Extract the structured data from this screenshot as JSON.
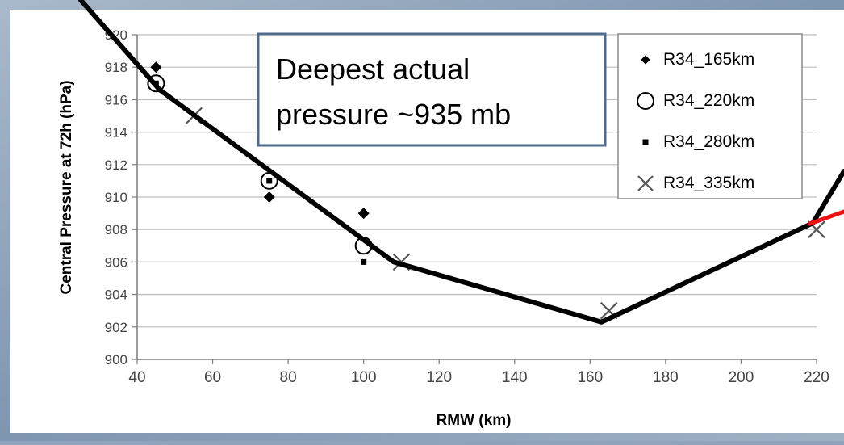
{
  "chart_data": {
    "type": "scatter",
    "title": "",
    "xlabel": "RMW (km)",
    "ylabel": "Central Pressure at 72h (hPa)",
    "xlim": [
      40,
      220
    ],
    "ylim": [
      900,
      920
    ],
    "x_ticks": [
      40,
      60,
      80,
      100,
      120,
      140,
      160,
      180,
      200,
      220
    ],
    "y_ticks": [
      900,
      902,
      904,
      906,
      908,
      910,
      912,
      914,
      916,
      918,
      920
    ],
    "grid": "horizontal",
    "legend_position": "top-right",
    "series": [
      {
        "name": "R34_165km",
        "marker": "diamond",
        "color": "#000000",
        "points": [
          [
            45,
            918
          ],
          [
            75,
            910
          ],
          [
            100,
            909
          ]
        ]
      },
      {
        "name": "R34_220km",
        "marker": "circle-open",
        "color": "#000000",
        "points": [
          [
            45,
            917
          ],
          [
            75,
            911
          ],
          [
            100,
            907
          ]
        ]
      },
      {
        "name": "R34_280km",
        "marker": "square-small",
        "color": "#000000",
        "points": [
          [
            45,
            917
          ],
          [
            75,
            911
          ],
          [
            100,
            906
          ]
        ]
      },
      {
        "name": "R34_335km",
        "marker": "x",
        "color": "#000000",
        "points": [
          [
            55,
            915
          ],
          [
            110,
            906
          ],
          [
            165,
            903
          ],
          [
            220,
            908
          ]
        ]
      }
    ],
    "trend_line": {
      "color": "#000000",
      "points": [
        [
          46,
          916.6
        ],
        [
          108,
          906
        ],
        [
          163,
          902.3
        ],
        [
          219,
          908.4
        ]
      ]
    },
    "trend_line_extensions": [
      {
        "color": "#000000",
        "points": [
          [
            45.7,
            916.7
          ],
          [
            45.8,
            916.5
          ]
        ]
      }
    ],
    "annotation": {
      "text_lines": [
        "Deepest actual",
        "pressure ~935 mb"
      ],
      "border_color": "#4e6b8c"
    },
    "colors": {
      "background_frame": "#8fa4bb",
      "plot_background": "#ffffff",
      "gridline": "#bdbdbd",
      "red_line": "#ee1111"
    }
  }
}
